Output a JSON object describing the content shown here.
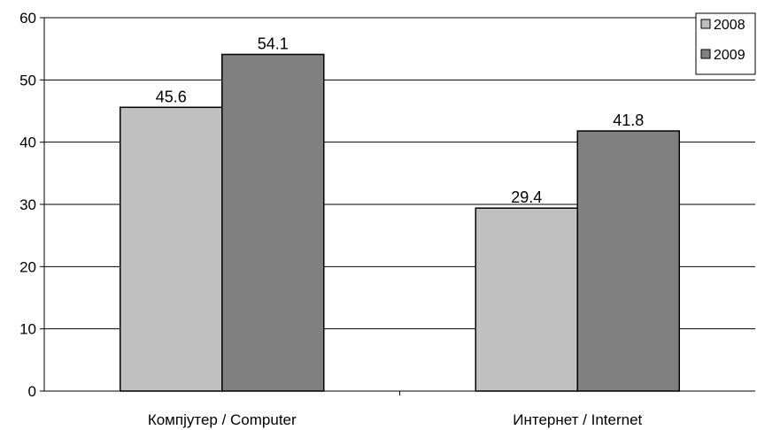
{
  "chart_data": {
    "type": "bar",
    "categories": [
      "Компјутер  / Computer",
      "Интернет  / Internet"
    ],
    "series": [
      {
        "name": "2008",
        "values": [
          45.6,
          29.4
        ],
        "color": "#c0c0c0"
      },
      {
        "name": "2009",
        "values": [
          54.1,
          41.8
        ],
        "color": "#808080"
      }
    ],
    "ylim": [
      0,
      60
    ],
    "yticks": [
      "0",
      "10",
      "20",
      "30",
      "40",
      "50",
      "60"
    ],
    "data_labels": [
      [
        "45.6",
        "29.4"
      ],
      [
        "54.1",
        "41.8"
      ]
    ],
    "grid": true,
    "legend_position": "top-right"
  }
}
